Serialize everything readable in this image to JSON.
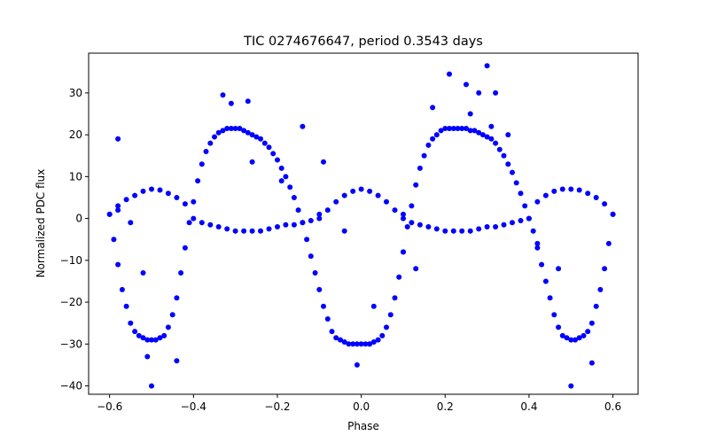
{
  "chart_data": {
    "type": "scatter",
    "title": "TIC 0274676647, period 0.3543 days",
    "xlabel": "Phase",
    "ylabel": "Normalized PDC flux",
    "xlim": [
      -0.65,
      0.66
    ],
    "ylim": [
      -42,
      39.5
    ],
    "xticks": [
      -0.6,
      -0.4,
      -0.2,
      0.0,
      0.2,
      0.4,
      0.6
    ],
    "xtick_labels": [
      "−0.6",
      "−0.4",
      "−0.2",
      "0.0",
      "0.2",
      "0.4",
      "0.6"
    ],
    "yticks": [
      -40,
      -30,
      -20,
      -10,
      0,
      10,
      20,
      30
    ],
    "ytick_labels": [
      "−40",
      "−30",
      "−20",
      "−10",
      "0",
      "10",
      "20",
      "30"
    ],
    "grid": false,
    "color": "#0000ff",
    "series": [
      {
        "name": "",
        "x": [
          -0.6,
          -0.59,
          -0.58,
          -0.57,
          -0.56,
          -0.55,
          -0.54,
          -0.53,
          -0.52,
          -0.51,
          -0.5,
          -0.49,
          -0.48,
          -0.47,
          -0.46,
          -0.45,
          -0.44,
          -0.43,
          -0.42,
          -0.41,
          -0.4,
          -0.39,
          -0.38,
          -0.37,
          -0.36,
          -0.35,
          -0.34,
          -0.33,
          -0.32,
          -0.31,
          -0.3,
          -0.29,
          -0.28,
          -0.27,
          -0.26,
          -0.25,
          -0.24,
          -0.23,
          -0.22,
          -0.21,
          -0.2,
          -0.19,
          -0.18,
          -0.17,
          -0.16,
          -0.15,
          -0.14,
          -0.13,
          -0.12,
          -0.11,
          -0.1,
          -0.09,
          -0.08,
          -0.07,
          -0.06,
          -0.05,
          -0.04,
          -0.03,
          -0.02,
          -0.01,
          0.0,
          0.01,
          0.02,
          0.03,
          0.04,
          0.05,
          0.06,
          0.07,
          0.08,
          0.09,
          0.1,
          0.11,
          0.12,
          0.13,
          0.14,
          0.15,
          0.16,
          0.17,
          0.18,
          0.19,
          0.2,
          0.21,
          0.22,
          0.23,
          0.24,
          0.25,
          0.26,
          0.27,
          0.28,
          0.29,
          0.3,
          0.31,
          0.32,
          0.33,
          0.34,
          0.35,
          0.36,
          0.37,
          0.38,
          0.39,
          0.4,
          0.41,
          0.42,
          0.43,
          0.44,
          0.45,
          0.46,
          0.47,
          0.48,
          0.49,
          0.5,
          0.51,
          0.52,
          0.53,
          0.54,
          0.55,
          0.56,
          0.57,
          0.58,
          0.59,
          0.6
        ],
        "y": [
          1,
          -5,
          -11,
          -17,
          -21,
          -25,
          -27,
          -28,
          -28.5,
          -29,
          -29,
          -29,
          -28.5,
          -28,
          -26,
          -23,
          -19,
          -13,
          -7,
          -1,
          4,
          9,
          13,
          16,
          18,
          19.5,
          20.5,
          21,
          21.5,
          21.5,
          21.5,
          21.5,
          21,
          20.5,
          20,
          19.5,
          19,
          18,
          17,
          15.5,
          14,
          12,
          10,
          7.5,
          5,
          2,
          -1,
          -5,
          -9,
          -13,
          -17,
          -21,
          -24,
          -27,
          -28.5,
          -29,
          -29.5,
          -30,
          -30,
          -30,
          -30,
          -30,
          -30,
          -29.5,
          -29,
          -28,
          -26,
          -23,
          -19,
          -14,
          -8,
          -2,
          3,
          8,
          12,
          15,
          17.5,
          19,
          20,
          21,
          21.5,
          21.5,
          21.5,
          21.5,
          21.5,
          21.5,
          21,
          21,
          20.5,
          20,
          19.5,
          19,
          18,
          16.5,
          15,
          13,
          11,
          8.5,
          6,
          3,
          0,
          -3,
          -7,
          -11,
          -15,
          -19,
          -23,
          -26,
          -28,
          -28.5,
          -29,
          -29,
          -28.5,
          -28,
          -27,
          -25,
          -21,
          -17,
          -12,
          -6,
          1
        ]
      },
      {
        "name": "",
        "x": [
          -0.6,
          -0.58,
          -0.56,
          -0.54,
          -0.52,
          -0.5,
          -0.48,
          -0.46,
          -0.44,
          -0.42,
          -0.1,
          -0.08,
          -0.06,
          -0.04,
          -0.02,
          0.0,
          0.02,
          0.04,
          0.06,
          0.08,
          0.1,
          0.42,
          0.44,
          0.46,
          0.48,
          0.5,
          0.52,
          0.54,
          0.56,
          0.58,
          0.6
        ],
        "y": [
          1,
          3,
          4.5,
          5.5,
          6.5,
          7,
          6.8,
          6,
          5,
          3.5,
          1,
          2,
          4,
          5.5,
          6.5,
          7,
          6.5,
          5.5,
          4,
          2,
          1,
          4,
          5.5,
          6.5,
          7,
          7,
          6.8,
          6,
          5,
          3.5,
          1
        ]
      },
      {
        "name": "",
        "x": [
          -0.4,
          -0.38,
          -0.36,
          -0.34,
          -0.32,
          -0.3,
          -0.28,
          -0.26,
          -0.24,
          -0.22,
          -0.2,
          -0.18,
          -0.16,
          -0.14,
          -0.12,
          -0.1,
          0.1,
          0.12,
          0.14,
          0.16,
          0.18,
          0.2,
          0.22,
          0.24,
          0.26,
          0.28,
          0.3,
          0.32,
          0.34,
          0.36,
          0.38,
          0.4
        ],
        "y": [
          0,
          -1,
          -1.5,
          -2,
          -2.5,
          -3,
          -3,
          -3,
          -3,
          -2.5,
          -2,
          -1.5,
          -1.5,
          -1,
          -0.5,
          0,
          0,
          -1,
          -1.5,
          -2,
          -2.5,
          -3,
          -3,
          -3,
          -3,
          -2.5,
          -2,
          -2,
          -1.5,
          -1,
          -0.5,
          0
        ]
      },
      {
        "name": "",
        "x": [
          -0.58,
          -0.55,
          -0.52,
          -0.5,
          -0.44,
          -0.33,
          -0.31,
          -0.26,
          -0.19,
          -0.14,
          -0.09,
          -0.04,
          0.03,
          0.1,
          0.13,
          0.17,
          0.21,
          0.25,
          0.28,
          0.3,
          0.31,
          0.32,
          0.35,
          0.42,
          0.47,
          0.5,
          0.55,
          0.02,
          -0.01,
          -0.58,
          0.26,
          -0.27,
          -0.51
        ],
        "y": [
          19,
          -1,
          -13,
          -40,
          -34,
          29.5,
          27.5,
          13.5,
          9,
          22,
          13.5,
          -3,
          -21,
          -8,
          -12,
          26.5,
          34.5,
          32,
          30,
          36.5,
          22,
          30,
          20,
          -6,
          -12,
          -40,
          -34.5,
          -30,
          -35,
          2,
          25,
          28,
          -33
        ]
      }
    ]
  }
}
